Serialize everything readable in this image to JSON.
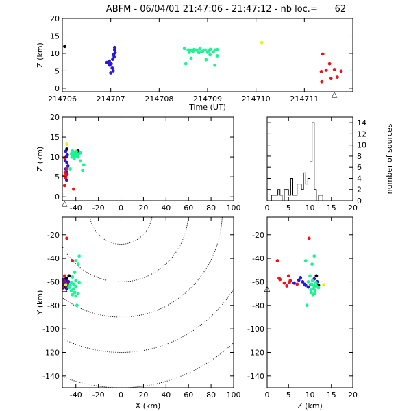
{
  "title": "ABFM - 06/04/01 21:47:06 - 21:47:12 - nb loc.=      62",
  "marker": "△",
  "colors": {
    "black": "#000000",
    "blue": "#2a18d6",
    "green": "#19f590",
    "yellow": "#e6ef18",
    "red": "#ef1218",
    "frame": "#000000"
  },
  "chart_data": [
    {
      "id": "time_z",
      "type": "scatter",
      "xlabel": "Time (UT)",
      "ylabel": "Z (km)",
      "xlim": [
        214706,
        214712
      ],
      "ylim": [
        -1,
        20
      ],
      "xticks": [
        {
          "v": 214706,
          "label": "214706"
        },
        {
          "v": 214707,
          "label": "214707"
        },
        {
          "v": 214708,
          "label": "214708"
        },
        {
          "v": 214709,
          "label": "214709"
        },
        {
          "v": 214710,
          "label": "214710"
        },
        {
          "v": 214711,
          "label": "214711"
        }
      ],
      "yticks": [
        0,
        5,
        10,
        15,
        20
      ],
      "marker_at": [
        214711.62,
        -1.2
      ],
      "series": [
        {
          "color": "black",
          "points": [
            [
              214706.05,
              12.0
            ]
          ]
        },
        {
          "color": "blue",
          "points": [
            [
              214707.08,
              11.7
            ],
            [
              214707.08,
              11.0
            ],
            [
              214707.09,
              10.2
            ],
            [
              214707.06,
              9.6
            ],
            [
              214707.07,
              9.0
            ],
            [
              214707.04,
              8.3
            ],
            [
              214706.97,
              7.8
            ],
            [
              214706.92,
              7.4
            ],
            [
              214706.96,
              7.2
            ],
            [
              214707.01,
              7.0
            ],
            [
              214706.98,
              6.6
            ],
            [
              214707.03,
              5.8
            ],
            [
              214707.0,
              4.4
            ],
            [
              214707.05,
              5.0
            ]
          ]
        },
        {
          "color": "green",
          "points": [
            [
              214708.52,
              11.4
            ],
            [
              214708.6,
              11.0
            ],
            [
              214708.66,
              10.8
            ],
            [
              214708.72,
              11.1
            ],
            [
              214708.78,
              10.9
            ],
            [
              214708.84,
              11.3
            ],
            [
              214708.9,
              10.6
            ],
            [
              214708.95,
              11.0
            ],
            [
              214709.02,
              10.7
            ],
            [
              214709.06,
              11.2
            ],
            [
              214709.12,
              10.4
            ],
            [
              214709.16,
              11.0
            ],
            [
              214708.62,
              10.3
            ],
            [
              214708.7,
              10.6
            ],
            [
              214708.82,
              10.2
            ],
            [
              214708.88,
              10.5
            ],
            [
              214709.0,
              10.3
            ],
            [
              214709.05,
              9.6
            ],
            [
              214709.2,
              9.3
            ],
            [
              214708.66,
              8.6
            ],
            [
              214708.55,
              7.0
            ],
            [
              214708.97,
              8.2
            ],
            [
              214709.15,
              6.6
            ],
            [
              214709.2,
              11.1
            ]
          ]
        },
        {
          "color": "yellow",
          "points": [
            [
              214710.12,
              13.1
            ]
          ]
        },
        {
          "color": "red",
          "points": [
            [
              214711.38,
              9.8
            ],
            [
              214711.52,
              7.0
            ],
            [
              214711.45,
              5.2
            ],
            [
              214711.35,
              4.8
            ],
            [
              214711.62,
              5.4
            ],
            [
              214711.76,
              4.9
            ],
            [
              214711.68,
              3.2
            ],
            [
              214711.55,
              2.8
            ],
            [
              214711.36,
              1.9
            ]
          ]
        }
      ]
    },
    {
      "id": "x_z",
      "type": "scatter",
      "xlabel": "",
      "ylabel": "Z (km)",
      "xlim": [
        -52,
        100
      ],
      "ylim": [
        -1,
        20
      ],
      "xticks": [
        -40,
        -20,
        0,
        20,
        40,
        60,
        80,
        100
      ],
      "yticks": [
        0,
        5,
        10,
        15,
        20
      ],
      "marker_at": [
        -50,
        -1.2
      ],
      "series": [
        {
          "color": "black",
          "points": [
            [
              -48.0,
              12.0
            ],
            [
              -38.0,
              11.5
            ]
          ]
        },
        {
          "color": "yellow",
          "points": [
            [
              -48.0,
              13.2
            ]
          ]
        },
        {
          "color": "blue",
          "points": [
            [
              -49.0,
              11.4
            ],
            [
              -47.5,
              10.5
            ],
            [
              -48.5,
              10.0
            ],
            [
              -49.5,
              9.2
            ],
            [
              -48.0,
              8.6
            ],
            [
              -47.0,
              7.7
            ],
            [
              -49.0,
              7.0
            ],
            [
              -48.5,
              6.3
            ],
            [
              -47.8,
              5.6
            ],
            [
              -49.2,
              4.8
            ],
            [
              -48.2,
              4.2
            ]
          ]
        },
        {
          "color": "green",
          "points": [
            [
              -43.0,
              11.5
            ],
            [
              -41.0,
              11.0
            ],
            [
              -39.0,
              10.6
            ],
            [
              -37.0,
              10.8
            ],
            [
              -40.0,
              10.2
            ],
            [
              -42.0,
              10.4
            ],
            [
              -38.0,
              10.0
            ],
            [
              -36.0,
              11.0
            ],
            [
              -44.0,
              10.8
            ],
            [
              -39.5,
              11.4
            ],
            [
              -41.5,
              9.6
            ],
            [
              -36.0,
              9.0
            ],
            [
              -33.0,
              8.0
            ],
            [
              -34.0,
              6.6
            ],
            [
              -45.0,
              7.0
            ],
            [
              -43.5,
              10.0
            ]
          ]
        },
        {
          "color": "red",
          "points": [
            [
              -50.0,
              9.8
            ],
            [
              -48.0,
              7.0
            ],
            [
              -50.5,
              5.2
            ],
            [
              -49.0,
              4.8
            ],
            [
              -48.5,
              5.4
            ],
            [
              -50.0,
              2.8
            ],
            [
              -42.0,
              1.9
            ],
            [
              -49.5,
              6.0
            ]
          ]
        }
      ]
    },
    {
      "id": "histogram",
      "type": "bar",
      "xlabel": "",
      "ylabel": "number of sources",
      "xlim": [
        0,
        20
      ],
      "ylim": [
        0,
        15
      ],
      "xticks": [
        0,
        5,
        10,
        15,
        20
      ],
      "yticks": [
        0,
        2,
        4,
        6,
        8,
        10,
        12,
        14
      ],
      "bin_width": 0.5,
      "bin_start": 0,
      "values": [
        0,
        0,
        1,
        1,
        1,
        2,
        1,
        0,
        2,
        2,
        1,
        4,
        1,
        1,
        3,
        3,
        2,
        5,
        3,
        4,
        7,
        14,
        2,
        0,
        1,
        1,
        0,
        0,
        0,
        0,
        0,
        0,
        0,
        0,
        0,
        0,
        0,
        0,
        0,
        0
      ]
    },
    {
      "id": "x_y",
      "type": "scatter",
      "xlabel": "X (km)",
      "ylabel": "Y (km)",
      "xlim": [
        -52,
        100
      ],
      "ylim": [
        -150,
        -5
      ],
      "xticks": [
        -40,
        -20,
        0,
        20,
        40,
        60,
        80,
        100
      ],
      "yticks": [
        -20,
        -40,
        -60,
        -80,
        -100,
        -120,
        -140
      ],
      "marker_at": [
        -50,
        -64
      ],
      "rings": {
        "center": [
          0,
          0
        ],
        "radii": [
          28,
          60,
          90,
          120,
          150
        ]
      },
      "series": [
        {
          "color": "red",
          "points": [
            [
              -48.0,
              -23.0
            ],
            [
              -43.0,
              -42.0
            ],
            [
              -50.0,
              -55.0
            ],
            [
              -49.5,
              -58.0
            ],
            [
              -51.0,
              -60.5
            ],
            [
              -50.0,
              -62.0
            ],
            [
              -48.5,
              -63.5
            ],
            [
              -51.0,
              -65.0
            ],
            [
              -47.5,
              -61.0
            ],
            [
              -49.0,
              -59.0
            ]
          ]
        },
        {
          "color": "blue",
          "points": [
            [
              -50.0,
              -61.0
            ],
            [
              -48.0,
              -58.5
            ],
            [
              -46.5,
              -60.0
            ],
            [
              -50.5,
              -63.0
            ],
            [
              -49.5,
              -64.5
            ],
            [
              -47.0,
              -62.5
            ],
            [
              -48.0,
              -66.0
            ],
            [
              -51.0,
              -58.0
            ]
          ]
        },
        {
          "color": "black",
          "points": [
            [
              -46.0,
              -55.0
            ],
            [
              -48.5,
              -57.0
            ]
          ]
        },
        {
          "color": "yellow",
          "points": [
            [
              -49.0,
              -62.5
            ]
          ]
        },
        {
          "color": "green",
          "points": [
            [
              -37.0,
              -38.0
            ],
            [
              -40.0,
              -42.0
            ],
            [
              -38.0,
              -45.0
            ],
            [
              -41.0,
              -52.0
            ],
            [
              -43.0,
              -56.0
            ],
            [
              -40.0,
              -59.0
            ],
            [
              -37.0,
              -60.5
            ],
            [
              -42.0,
              -62.0
            ],
            [
              -45.0,
              -63.0
            ],
            [
              -40.0,
              -64.0
            ],
            [
              -42.0,
              -66.0
            ],
            [
              -44.0,
              -67.5
            ],
            [
              -41.0,
              -69.0
            ],
            [
              -38.0,
              -70.0
            ],
            [
              -43.0,
              -71.0
            ],
            [
              -40.0,
              -72.0
            ],
            [
              -39.0,
              -80.0
            ],
            [
              -46.0,
              -65.0
            ],
            [
              -44.0,
              -60.5
            ]
          ]
        }
      ]
    },
    {
      "id": "z_y",
      "type": "scatter",
      "xlabel": "Z (km)",
      "ylabel": "",
      "xlim": [
        0,
        20
      ],
      "ylim": [
        -150,
        -5
      ],
      "xticks": [
        0,
        5,
        10,
        15,
        20
      ],
      "yticks": [
        -20,
        -40,
        -60,
        -80,
        -100,
        -120,
        -140
      ],
      "marker_at": [
        0,
        -64
      ],
      "series": [
        {
          "color": "red",
          "points": [
            [
              9.8,
              -23.0
            ],
            [
              2.4,
              -42.0
            ],
            [
              5.0,
              -55.0
            ],
            [
              3.0,
              -58.0
            ],
            [
              5.2,
              -60.5
            ],
            [
              7.0,
              -62.0
            ],
            [
              4.6,
              -63.5
            ],
            [
              5.4,
              -59.0
            ],
            [
              2.8,
              -57.0
            ],
            [
              4.0,
              -61.0
            ]
          ]
        },
        {
          "color": "blue",
          "points": [
            [
              6.3,
              -61.0
            ],
            [
              7.4,
              -58.5
            ],
            [
              8.3,
              -60.0
            ],
            [
              9.0,
              -63.0
            ],
            [
              9.6,
              -64.5
            ],
            [
              10.2,
              -62.5
            ],
            [
              11.0,
              -57.5
            ],
            [
              11.7,
              -60.0
            ],
            [
              7.8,
              -56.5
            ],
            [
              8.7,
              -62.0
            ]
          ]
        },
        {
          "color": "black",
          "points": [
            [
              12.0,
              -63.0
            ],
            [
              11.5,
              -55.0
            ]
          ]
        },
        {
          "color": "yellow",
          "points": [
            [
              13.2,
              -62.5
            ]
          ]
        },
        {
          "color": "green",
          "points": [
            [
              11.0,
              -38.0
            ],
            [
              9.0,
              -42.0
            ],
            [
              10.5,
              -45.0
            ],
            [
              10.0,
              -55.0
            ],
            [
              10.6,
              -59.0
            ],
            [
              11.4,
              -60.5
            ],
            [
              10.4,
              -62.0
            ],
            [
              10.9,
              -63.0
            ],
            [
              11.0,
              -64.0
            ],
            [
              10.8,
              -66.0
            ],
            [
              11.2,
              -67.5
            ],
            [
              10.3,
              -69.0
            ],
            [
              11.1,
              -70.0
            ],
            [
              10.7,
              -71.0
            ],
            [
              12.0,
              -65.0
            ],
            [
              9.3,
              -80.0
            ],
            [
              11.5,
              -63.5
            ],
            [
              10.2,
              -67.0
            ],
            [
              9.6,
              -60.0
            ]
          ]
        }
      ]
    }
  ]
}
